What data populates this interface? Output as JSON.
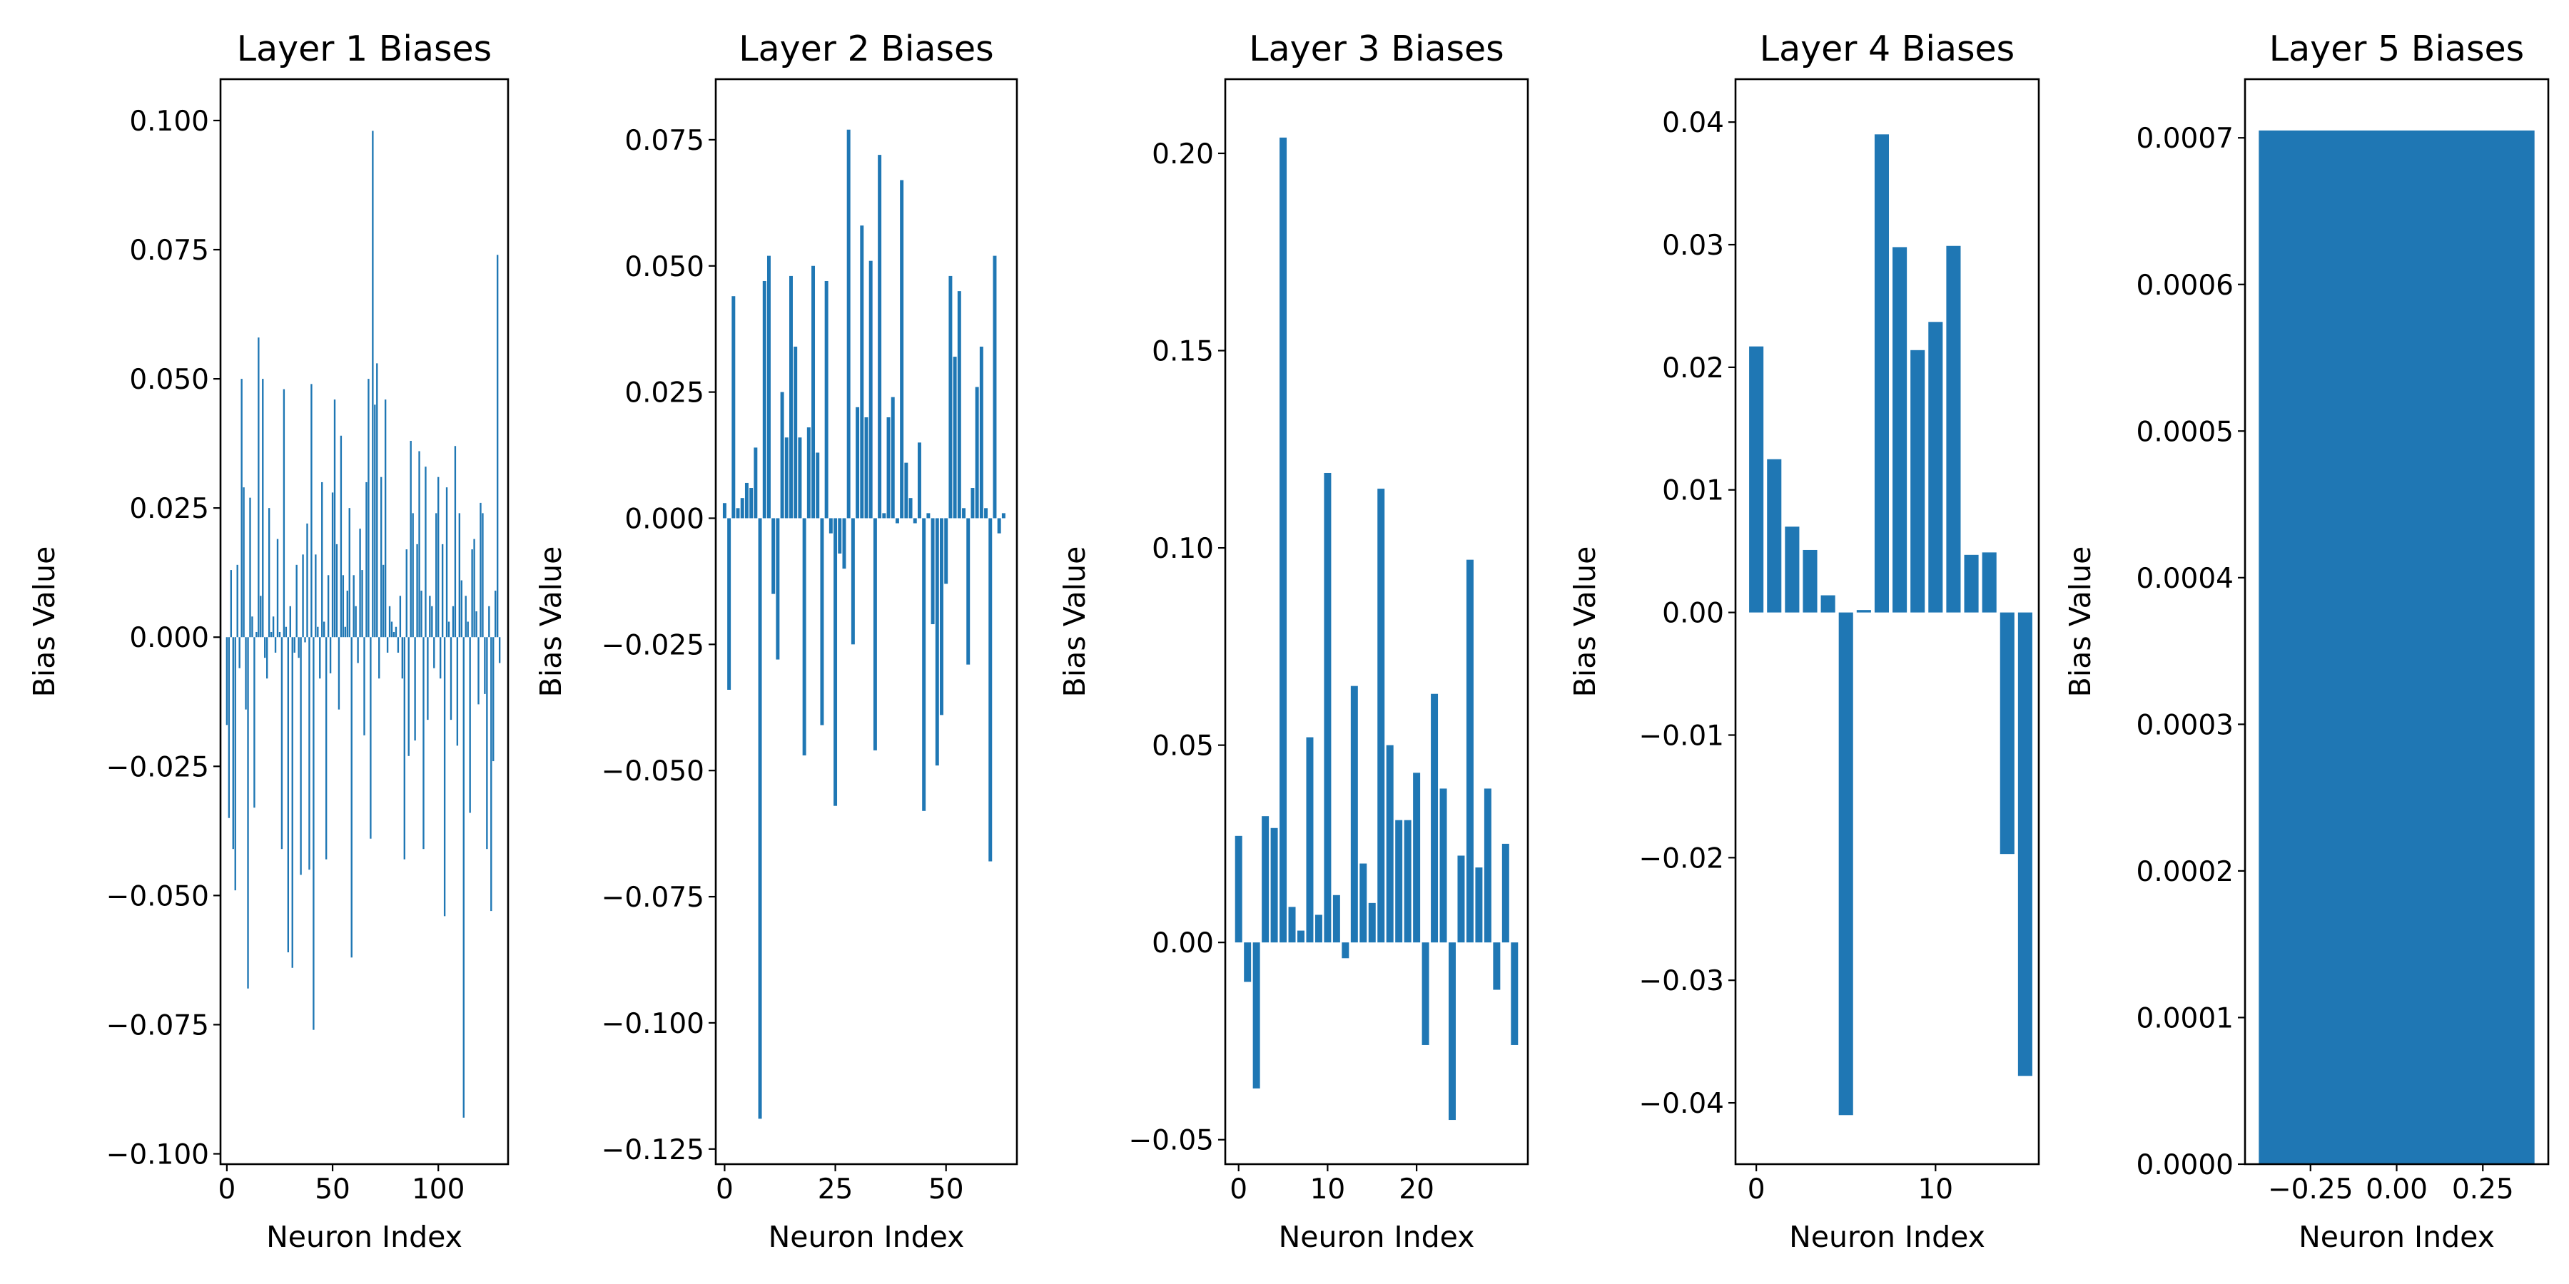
{
  "figure": {
    "background": "#ffffff",
    "bar_color": "#1f77b4"
  },
  "chart_data": [
    {
      "type": "bar",
      "title": "Layer 1 Biases",
      "xlabel": "Neuron Index",
      "ylabel": "Bias Value",
      "xlim": [
        -3,
        133
      ],
      "ylim": [
        -0.102,
        0.108
      ],
      "xticks": [
        0,
        50,
        100
      ],
      "xtick_labels": [
        "0",
        "50",
        "100"
      ],
      "yticks": [
        -0.1,
        -0.075,
        -0.05,
        -0.025,
        0,
        0.025,
        0.05,
        0.075,
        0.1
      ],
      "ytick_labels": [
        "−0.100",
        "−0.075",
        "−0.050",
        "−0.025",
        "0.000",
        "0.025",
        "0.050",
        "0.075",
        "0.100"
      ],
      "bar_width": 0.8,
      "x_start": 0,
      "values": [
        -0.017,
        -0.035,
        0.013,
        -0.041,
        -0.049,
        0.014,
        -0.006,
        0.05,
        0.029,
        -0.014,
        -0.068,
        0.027,
        0.004,
        -0.033,
        0.001,
        0.058,
        0.008,
        0.05,
        -0.004,
        -0.008,
        0.025,
        0.001,
        0.004,
        -0.003,
        0.019,
        0.001,
        -0.041,
        0.048,
        0.002,
        -0.061,
        0.006,
        -0.064,
        -0.003,
        0.014,
        -0.004,
        -0.046,
        0.016,
        -0.001,
        0.022,
        -0.045,
        0.049,
        -0.076,
        0.016,
        0.002,
        -0.008,
        0.03,
        0.003,
        -0.043,
        0.012,
        -0.007,
        0.028,
        0.046,
        0.018,
        -0.014,
        0.039,
        0.012,
        0.002,
        0.009,
        0.025,
        -0.062,
        0.012,
        0.006,
        -0.005,
        0.021,
        0.013,
        -0.019,
        0.03,
        0.05,
        -0.039,
        0.098,
        0.045,
        0.053,
        -0.008,
        0.031,
        0.014,
        0.046,
        -0.003,
        0.006,
        0.003,
        0.001,
        0.002,
        -0.003,
        0.008,
        -0.008,
        -0.043,
        0.017,
        -0.023,
        0.038,
        0.024,
        -0.02,
        0.018,
        0.036,
        0.009,
        -0.041,
        0.033,
        -0.016,
        0.008,
        0.006,
        -0.006,
        0.024,
        0.031,
        -0.008,
        0.018,
        -0.054,
        0.029,
        0.003,
        -0.016,
        0.006,
        0.037,
        -0.021,
        0.024,
        0.011,
        -0.093,
        0.008,
        0.003,
        -0.034,
        0.017,
        0.019,
        0.005,
        -0.013,
        0.026,
        0.024,
        -0.011,
        -0.041,
        0.006,
        -0.053,
        -0.024,
        0.009,
        0.074,
        -0.005
      ]
    },
    {
      "type": "bar",
      "title": "Layer 2 Biases",
      "xlabel": "Neuron Index",
      "ylabel": "Bias Value",
      "xlim": [
        -2,
        66
      ],
      "ylim": [
        -0.128,
        0.087
      ],
      "xticks": [
        0,
        25,
        50
      ],
      "xtick_labels": [
        "0",
        "25",
        "50"
      ],
      "yticks": [
        -0.125,
        -0.1,
        -0.075,
        -0.05,
        -0.025,
        0,
        0.025,
        0.05,
        0.075
      ],
      "ytick_labels": [
        "−0.125",
        "−0.100",
        "−0.075",
        "−0.050",
        "−0.025",
        "0.000",
        "0.025",
        "0.050",
        "0.075"
      ],
      "bar_width": 0.8,
      "x_start": 0,
      "values": [
        0.003,
        -0.034,
        0.044,
        0.002,
        0.004,
        0.007,
        0.006,
        0.014,
        -0.119,
        0.047,
        0.052,
        -0.015,
        -0.028,
        0.025,
        0.016,
        0.048,
        0.034,
        0.016,
        -0.047,
        0.018,
        0.05,
        0.013,
        -0.041,
        0.047,
        -0.003,
        -0.057,
        -0.007,
        -0.01,
        0.077,
        -0.025,
        0.022,
        0.058,
        0.02,
        0.051,
        -0.046,
        0.072,
        0.001,
        0.02,
        0.024,
        -0.001,
        0.067,
        0.011,
        0.004,
        -0.001,
        0.015,
        -0.058,
        0.001,
        -0.021,
        -0.049,
        -0.039,
        -0.013,
        0.048,
        0.032,
        0.045,
        0.002,
        -0.029,
        0.006,
        0.026,
        0.034,
        0.002,
        -0.068,
        0.052,
        -0.003,
        0.001
      ]
    },
    {
      "type": "bar",
      "title": "Layer 3 Biases",
      "xlabel": "Neuron Index",
      "ylabel": "Bias Value",
      "xlim": [
        -1.5,
        32.5
      ],
      "ylim": [
        -0.0562,
        0.2188
      ],
      "xticks": [
        0,
        10,
        20
      ],
      "xtick_labels": [
        "0",
        "10",
        "20"
      ],
      "yticks": [
        -0.05,
        0,
        0.05,
        0.1,
        0.15,
        0.2
      ],
      "ytick_labels": [
        "−0.05",
        "0.00",
        "0.05",
        "0.10",
        "0.15",
        "0.20"
      ],
      "bar_width": 0.8,
      "x_start": 0,
      "values": [
        0.027,
        -0.01,
        -0.037,
        0.032,
        0.029,
        0.204,
        0.009,
        0.003,
        0.052,
        0.007,
        0.119,
        0.012,
        -0.004,
        0.065,
        0.02,
        0.01,
        0.115,
        0.05,
        0.031,
        0.031,
        0.043,
        -0.026,
        0.063,
        0.039,
        -0.045,
        0.022,
        0.097,
        0.019,
        0.039,
        -0.012,
        0.025,
        -0.026
      ]
    },
    {
      "type": "bar",
      "title": "Layer 4 Biases",
      "xlabel": "Neuron Index",
      "ylabel": "Bias Value",
      "xlim": [
        -1.16,
        15.76
      ],
      "ylim": [
        -0.045,
        0.0435
      ],
      "xticks": [
        0,
        10
      ],
      "xtick_labels": [
        "0",
        "10"
      ],
      "yticks": [
        -0.04,
        -0.03,
        -0.02,
        -0.01,
        0,
        0.01,
        0.02,
        0.03,
        0.04
      ],
      "ytick_labels": [
        "−0.04",
        "−0.03",
        "−0.02",
        "−0.01",
        "0.00",
        "0.01",
        "0.02",
        "0.03",
        "0.04"
      ],
      "bar_width": 0.8,
      "x_start": 0,
      "values": [
        0.0217,
        0.0125,
        0.007,
        0.0051,
        0.0014,
        -0.041,
        0.0002,
        0.039,
        0.0298,
        0.0214,
        0.0237,
        0.0299,
        0.0047,
        0.0049,
        -0.0197,
        -0.0378
      ]
    },
    {
      "type": "bar",
      "title": "Layer 5 Biases",
      "xlabel": "Neuron Index",
      "ylabel": "Bias Value",
      "xlim": [
        -0.44,
        0.44
      ],
      "ylim": [
        0,
        0.00074
      ],
      "xticks": [
        -0.25,
        0,
        0.25
      ],
      "xtick_labels": [
        "−0.25",
        "0.00",
        "0.25"
      ],
      "yticks": [
        0,
        0.0001,
        0.0002,
        0.0003,
        0.0004,
        0.0005,
        0.0006,
        0.0007
      ],
      "ytick_labels": [
        "0.0000",
        "0.0001",
        "0.0002",
        "0.0003",
        "0.0004",
        "0.0005",
        "0.0006",
        "0.0007"
      ],
      "bar_width": 0.8,
      "x_start": 0,
      "values": [
        0.000705
      ]
    }
  ]
}
